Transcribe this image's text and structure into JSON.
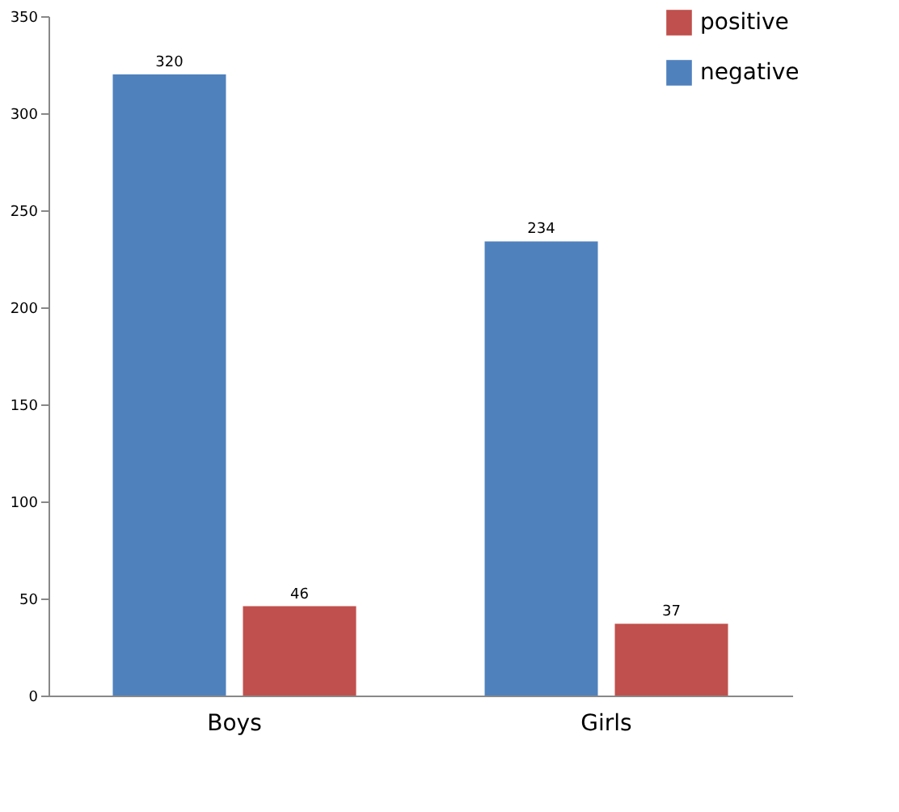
{
  "chart_data": {
    "type": "bar",
    "categories": [
      "Boys",
      "Girls"
    ],
    "series": [
      {
        "name": "negative",
        "color": "#4f81bd",
        "values": [
          320,
          234
        ]
      },
      {
        "name": "positive",
        "color": "#c0504d",
        "values": [
          46,
          37
        ]
      }
    ],
    "ylim": [
      0,
      350
    ],
    "yticks": [
      0,
      50,
      100,
      150,
      200,
      250,
      300,
      350
    ],
    "grid": false,
    "legend": "top right",
    "data_labels": true
  }
}
